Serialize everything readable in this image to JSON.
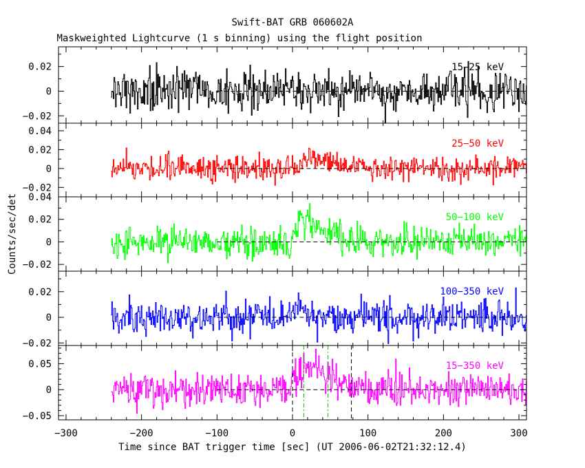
{
  "title_line1": "Swift-BAT GRB 060602A",
  "title_line2": "Maskweighted Lightcurve (1 s binning) using the flight position",
  "ylabel": "Counts/sec/det",
  "xlabel": "Time since BAT trigger time [sec] (UT 2006-06-02T21:32:12.4)",
  "chart_data": [
    {
      "type": "line",
      "name": "15-25 keV",
      "label": "15−25 keV",
      "color": "#000000",
      "xlim": [
        -310,
        310
      ],
      "ylim": [
        -0.026,
        0.036
      ],
      "yticks": [
        -0.02,
        0,
        0.02
      ],
      "ytick_labels": [
        "−0.02",
        "0",
        "0.02"
      ],
      "data_range": [
        -240,
        310
      ],
      "noise_sigma": 0.008,
      "signal": null,
      "vlines": []
    },
    {
      "type": "line",
      "name": "25-50 keV",
      "label": "25−50 keV",
      "color": "#ff0000",
      "xlim": [
        -310,
        310
      ],
      "ylim": [
        -0.03,
        0.048
      ],
      "yticks": [
        -0.02,
        0,
        0.02,
        0.04
      ],
      "ytick_labels": [
        "−0.02",
        "0",
        "0.02",
        "0.04"
      ],
      "data_range": [
        -240,
        310
      ],
      "noise_sigma": 0.0065,
      "signal": {
        "t0": 0,
        "peak_t": 20,
        "t1": 95,
        "peak": 0.012
      },
      "vlines": []
    },
    {
      "type": "line",
      "name": "50-100 keV",
      "label": "50−100 keV",
      "color": "#00ff00",
      "xlim": [
        -310,
        310
      ],
      "ylim": [
        -0.026,
        0.04
      ],
      "yticks": [
        -0.02,
        0,
        0.02,
        0.04
      ],
      "ytick_labels": [
        "−0.02",
        "0",
        "0.02",
        "0.04"
      ],
      "data_range": [
        -240,
        310
      ],
      "noise_sigma": 0.0065,
      "signal": {
        "t0": -2,
        "peak_t": 8,
        "t1": 75,
        "peak": 0.022
      },
      "vlines": []
    },
    {
      "type": "line",
      "name": "100-350 keV",
      "label": "100−350 keV",
      "color": "#0000ff",
      "xlim": [
        -310,
        310
      ],
      "ylim": [
        -0.022,
        0.036
      ],
      "yticks": [
        -0.02,
        0,
        0.02
      ],
      "ytick_labels": [
        "−0.02",
        "0",
        "0.02"
      ],
      "data_range": [
        -240,
        310
      ],
      "noise_sigma": 0.0065,
      "signal": {
        "t0": -2,
        "peak_t": 5,
        "t1": 30,
        "peak": 0.012
      },
      "vlines": []
    },
    {
      "type": "line",
      "name": "15-350 keV",
      "label": "15−350 keV",
      "color": "#ff00ff",
      "xlim": [
        -310,
        310
      ],
      "ylim": [
        -0.058,
        0.085
      ],
      "yticks": [
        -0.05,
        0,
        0.05
      ],
      "ytick_labels": [
        "−0.05",
        "0",
        "0.05"
      ],
      "data_range": [
        -240,
        310
      ],
      "noise_sigma": 0.016,
      "signal": {
        "t0": -2,
        "peak_t": 15,
        "t1": 80,
        "peak": 0.05
      },
      "vlines": [
        {
          "x": 0,
          "color": "#000000",
          "dash": "6,4"
        },
        {
          "x": 78,
          "color": "#000000",
          "dash": "6,4"
        },
        {
          "x": 15,
          "color": "#00cc00",
          "dash": "6,3,2,3"
        },
        {
          "x": 47,
          "color": "#00cc00",
          "dash": "6,3,2,3"
        }
      ]
    }
  ],
  "xticks": [
    -300,
    -200,
    -100,
    0,
    100,
    200,
    300
  ],
  "xtick_labels": [
    "−300",
    "−200",
    "−100",
    "0",
    "100",
    "200",
    "300"
  ],
  "zero_line_range": [
    -100,
    310
  ]
}
